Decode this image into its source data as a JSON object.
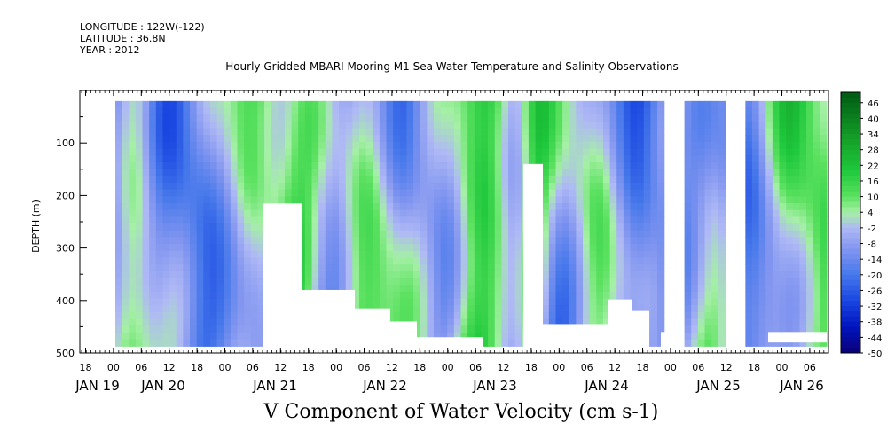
{
  "header": {
    "longitude": "LONGITUDE : 122W(-122)",
    "latitude": "LATITUDE : 36.8N",
    "year": "YEAR : 2012"
  },
  "chart_data": {
    "type": "heatmap",
    "title": "Hourly Gridded MBARI Mooring M1 Sea Water Temperature and Salinity Observations",
    "xlabel": "V Component of Water Velocity (cm s-1)",
    "ylabel": "DEPTH (m)",
    "ylim": [
      500,
      0
    ],
    "yticks": [
      100,
      200,
      300,
      400,
      500
    ],
    "hour_ticks": [
      "18",
      "00",
      "06",
      "12",
      "18",
      "00",
      "06",
      "12",
      "18",
      "00",
      "06",
      "12",
      "18",
      "00",
      "06",
      "12",
      "18",
      "00",
      "06",
      "12",
      "18",
      "00",
      "06",
      "12",
      "18",
      "00",
      "06"
    ],
    "day_labels": [
      "JAN 19",
      "JAN 20",
      "JAN 21",
      "JAN 22",
      "JAN 23",
      "JAN 24",
      "JAN 25",
      "JAN 26"
    ],
    "colorbar_labels": [
      "46",
      "40",
      "34",
      "28",
      "22",
      "16",
      "10",
      "4",
      "-2",
      "-8",
      "-14",
      "-20",
      "-26",
      "-32",
      "-38",
      "-44",
      "-50"
    ],
    "colorbar_range": [
      -50,
      50
    ]
  }
}
